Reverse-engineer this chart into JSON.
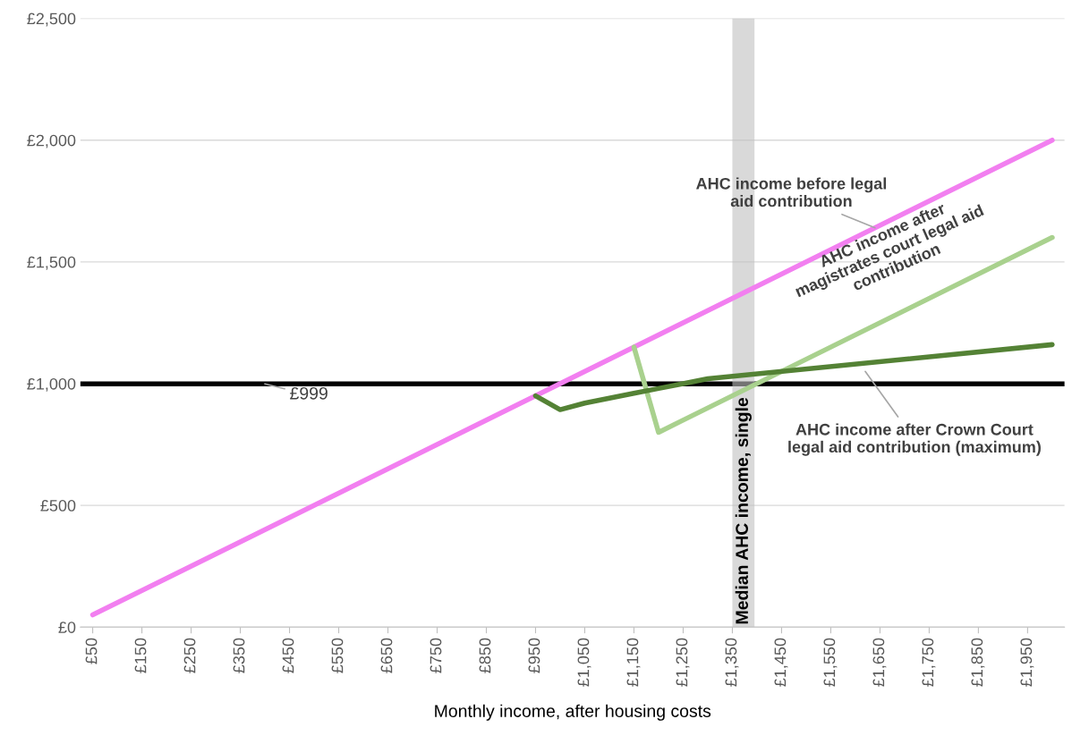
{
  "chart_data": {
    "type": "line",
    "xlabel": "Monthly income, after housing costs",
    "xlim": [
      25,
      2025
    ],
    "ylim": [
      0,
      2500
    ],
    "xticks": [
      {
        "value": 50,
        "label": "£50"
      },
      {
        "value": 150,
        "label": "£150"
      },
      {
        "value": 250,
        "label": "£250"
      },
      {
        "value": 350,
        "label": "£350"
      },
      {
        "value": 450,
        "label": "£450"
      },
      {
        "value": 550,
        "label": "£550"
      },
      {
        "value": 650,
        "label": "£650"
      },
      {
        "value": 750,
        "label": "£750"
      },
      {
        "value": 850,
        "label": "£850"
      },
      {
        "value": 950,
        "label": "£950"
      },
      {
        "value": 1050,
        "label": "£1,050"
      },
      {
        "value": 1150,
        "label": "£1,150"
      },
      {
        "value": 1250,
        "label": "£1,250"
      },
      {
        "value": 1350,
        "label": "£1,350"
      },
      {
        "value": 1450,
        "label": "£1,450"
      },
      {
        "value": 1550,
        "label": "£1,550"
      },
      {
        "value": 1650,
        "label": "£1,650"
      },
      {
        "value": 1750,
        "label": "£1,750"
      },
      {
        "value": 1850,
        "label": "£1,850"
      },
      {
        "value": 1950,
        "label": "£1,950"
      }
    ],
    "yticks": [
      {
        "value": 0,
        "label": "£0"
      },
      {
        "value": 500,
        "label": "£500"
      },
      {
        "value": 1000,
        "label": "£1,000"
      },
      {
        "value": 1500,
        "label": "£1,500"
      },
      {
        "value": 2000,
        "label": "£2,000"
      },
      {
        "value": 2500,
        "label": "£2,500"
      }
    ],
    "grid": "y",
    "marker": "none",
    "line_style": "solid",
    "series": [
      {
        "name": "AHC income before legal aid contribution",
        "color": "#f27ff0",
        "x": [
          50,
          2000
        ],
        "values": [
          50,
          2000
        ]
      },
      {
        "name": "AHC income after magistrates court legal aid contribution",
        "color": "#a9d18e",
        "x": [
          1150,
          1200,
          2000
        ],
        "values": [
          1150,
          800,
          1600
        ]
      },
      {
        "name": "AHC income after Crown Court legal aid contribution (maximum)",
        "color": "#548235",
        "x": [
          950,
          1000,
          1050,
          1100,
          1150,
          1200,
          1250,
          1300,
          2000
        ],
        "values": [
          950,
          893,
          920,
          940,
          960,
          980,
          1000,
          1020,
          1160
        ]
      }
    ],
    "ref_lines": [
      {
        "axis": "y",
        "value": 999,
        "label": "£999",
        "color": "#000000",
        "line_style": "solid"
      }
    ],
    "bands": [
      {
        "axis": "x",
        "from": 1350,
        "to": 1395,
        "label": "Median AHC income, single",
        "color": "#bfbfbf"
      }
    ]
  }
}
